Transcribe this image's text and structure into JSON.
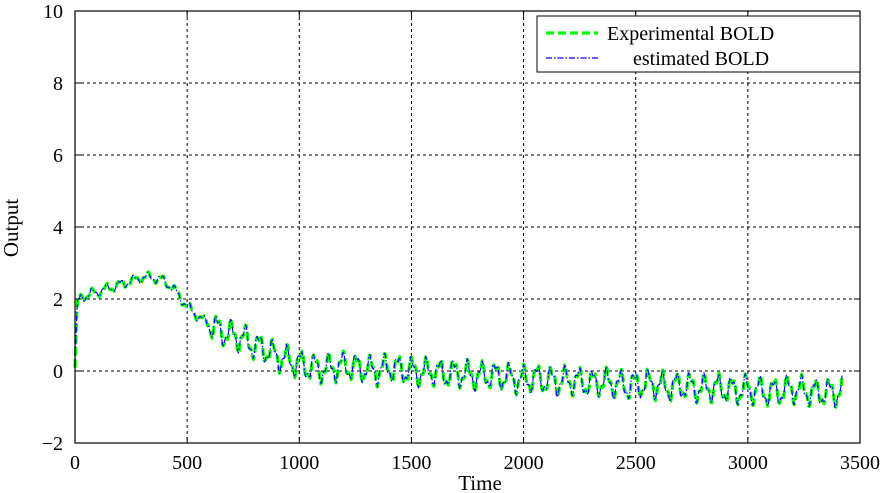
{
  "chart_data": {
    "type": "line",
    "xlabel": "Time",
    "ylabel": "Output",
    "xlim": [
      0,
      3500
    ],
    "ylim": [
      -2,
      10
    ],
    "xticks": [
      0,
      500,
      1000,
      1500,
      2000,
      2500,
      3000,
      3500
    ],
    "yticks": [
      -2,
      0,
      2,
      4,
      6,
      8,
      10
    ],
    "xtick_labels": [
      "0",
      "500",
      "1000",
      "1500",
      "2000",
      "2500",
      "3000",
      "3500"
    ],
    "ytick_labels": [
      "−2",
      "0",
      "2",
      "4",
      "6",
      "8",
      "10"
    ],
    "grid": true,
    "legend_position": "top-right",
    "series": [
      {
        "name": "Experimental BOLD",
        "color": "#00ff00",
        "style": "dashed",
        "x": [
          0,
          10,
          50,
          100,
          150,
          200,
          250,
          300,
          350,
          400,
          450,
          500,
          550,
          600,
          650,
          700,
          750,
          800,
          850,
          900,
          950,
          1000,
          1050,
          1100,
          1150,
          1200,
          1250,
          1300,
          1350,
          1400,
          1450,
          1500,
          1550,
          1600,
          1650,
          1700,
          1750,
          1800,
          1850,
          1900,
          1950,
          2000,
          2050,
          2100,
          2150,
          2200,
          2250,
          2300,
          2350,
          2400,
          2450,
          2500,
          2550,
          2600,
          2650,
          2700,
          2750,
          2800,
          2850,
          2900,
          2950,
          3000,
          3050,
          3100,
          3150,
          3200,
          3250,
          3300,
          3350,
          3400,
          3420
        ],
        "y": [
          0.1,
          2.0,
          2.1,
          2.2,
          2.3,
          2.4,
          2.5,
          2.6,
          2.6,
          2.5,
          2.2,
          1.8,
          1.5,
          1.3,
          1.1,
          1.0,
          0.9,
          0.7,
          0.6,
          0.4,
          0.3,
          0.2,
          0.1,
          0.05,
          0.1,
          0.15,
          0.1,
          0.05,
          0.0,
          0.1,
          0.05,
          0.0,
          -0.05,
          0.0,
          -0.1,
          -0.05,
          -0.1,
          -0.15,
          -0.1,
          -0.15,
          -0.2,
          -0.25,
          -0.2,
          -0.25,
          -0.3,
          -0.25,
          -0.3,
          -0.35,
          -0.3,
          -0.35,
          -0.4,
          -0.4,
          -0.35,
          -0.4,
          -0.45,
          -0.4,
          -0.45,
          -0.5,
          -0.45,
          -0.5,
          -0.55,
          -0.5,
          -0.55,
          -0.6,
          -0.55,
          -0.5,
          -0.55,
          -0.6,
          -0.6,
          -0.6,
          -0.5
        ]
      },
      {
        "name": "estimated BOLD",
        "color": "#0000ff",
        "style": "dash-dot",
        "x": [
          0,
          10,
          50,
          100,
          150,
          200,
          250,
          300,
          350,
          400,
          450,
          500,
          550,
          600,
          650,
          700,
          750,
          800,
          850,
          900,
          950,
          1000,
          1050,
          1100,
          1150,
          1200,
          1250,
          1300,
          1350,
          1400,
          1450,
          1500,
          1550,
          1600,
          1650,
          1700,
          1750,
          1800,
          1850,
          1900,
          1950,
          2000,
          2050,
          2100,
          2150,
          2200,
          2250,
          2300,
          2350,
          2400,
          2450,
          2500,
          2550,
          2600,
          2650,
          2700,
          2750,
          2800,
          2850,
          2900,
          2950,
          3000,
          3050,
          3100,
          3150,
          3200,
          3250,
          3300,
          3350,
          3400,
          3420
        ],
        "y": [
          0.1,
          2.0,
          2.1,
          2.2,
          2.3,
          2.4,
          2.5,
          2.6,
          2.6,
          2.5,
          2.2,
          1.8,
          1.5,
          1.3,
          1.1,
          1.0,
          0.9,
          0.7,
          0.6,
          0.4,
          0.3,
          0.2,
          0.1,
          0.05,
          0.1,
          0.15,
          0.1,
          0.05,
          0.0,
          0.1,
          0.05,
          0.0,
          -0.05,
          0.0,
          -0.1,
          -0.05,
          -0.1,
          -0.15,
          -0.1,
          -0.15,
          -0.2,
          -0.25,
          -0.2,
          -0.25,
          -0.3,
          -0.25,
          -0.3,
          -0.35,
          -0.3,
          -0.35,
          -0.4,
          -0.4,
          -0.35,
          -0.4,
          -0.45,
          -0.4,
          -0.45,
          -0.5,
          -0.45,
          -0.5,
          -0.55,
          -0.5,
          -0.55,
          -0.6,
          -0.55,
          -0.5,
          -0.55,
          -0.6,
          -0.6,
          -0.6,
          -0.5
        ]
      }
    ]
  }
}
